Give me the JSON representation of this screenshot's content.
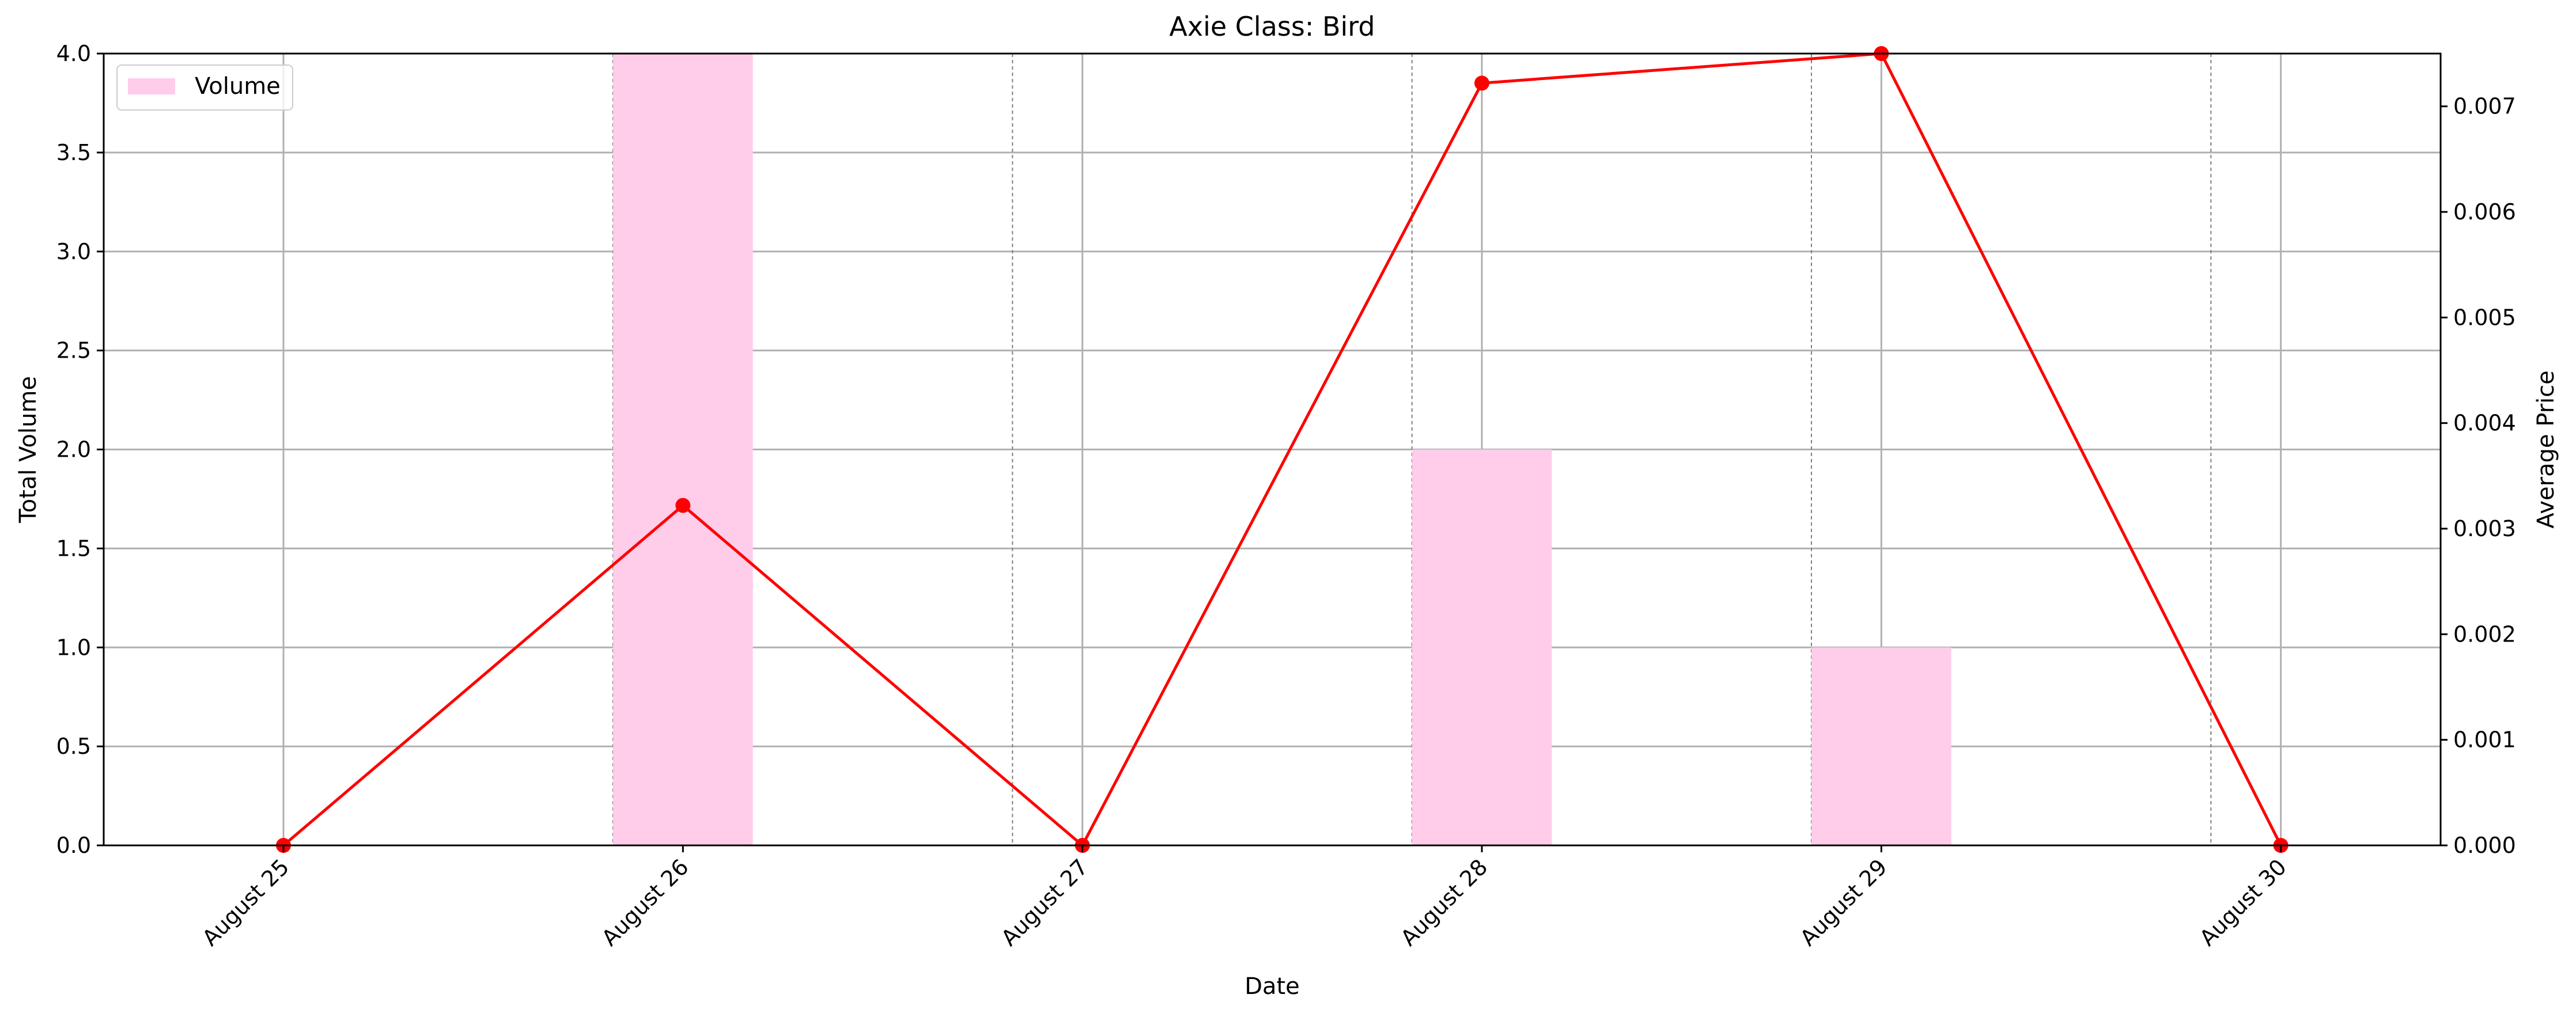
{
  "chart_data": {
    "type": "bar+line",
    "title": "Axie Class: Bird",
    "xlabel": "Date",
    "ylabel_left": "Total Volume",
    "ylabel_right": "Average Price",
    "categories": [
      "August 25",
      "August 26",
      "August 27",
      "August 28",
      "August 29",
      "August 30"
    ],
    "bar_series": {
      "name": "Volume",
      "values": [
        0,
        4,
        0,
        2,
        1,
        0
      ],
      "color": "#ffccea"
    },
    "line_series": {
      "values": [
        0,
        0.00322,
        0,
        0.00722,
        0.0075,
        0
      ],
      "color": "#ff0000"
    },
    "ylim_left": [
      0,
      4
    ],
    "ylim_right": [
      0,
      0.0075
    ],
    "yticks_left": [
      "0.0",
      "0.5",
      "1.0",
      "1.5",
      "2.0",
      "2.5",
      "3.0",
      "3.5",
      "4.0"
    ],
    "yticks_right": [
      "0.000",
      "0.001",
      "0.002",
      "0.003",
      "0.004",
      "0.005",
      "0.006",
      "0.007"
    ],
    "grid": true,
    "legend_position": "top-left"
  }
}
